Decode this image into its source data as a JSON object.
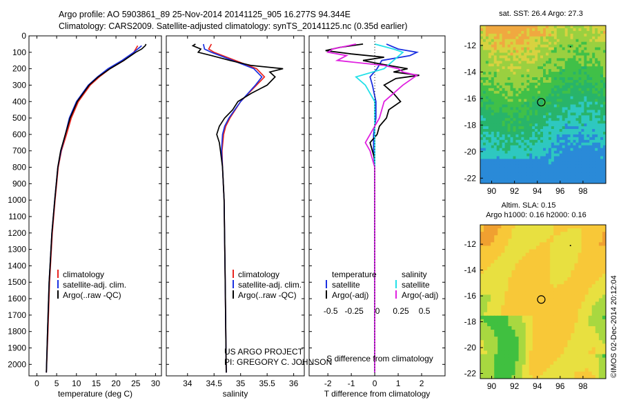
{
  "header": {
    "title_line1": "Argo profile: AO 5903861_89 25-Nov-2014 20141125_905 16.277S 94.344E",
    "title_line2": "Climatology: CARS2009. Satellite-adjusted climatology: synTS_20141125.nc (0.35d earlier)"
  },
  "side_label": "©IMOS 02-Dec-2014 20:12:04",
  "project_note": {
    "line1": "US ARGO PROJECT",
    "line2": "PI: GREGORY C. JOHNSON"
  },
  "colors": {
    "climatology": "#e8231e",
    "satellite": "#1a2fe0",
    "argo": "#000000",
    "salinity_sat": "#22e0e8",
    "salinity_argo": "#e020e0"
  },
  "chart_data": [
    {
      "type": "line",
      "title": "",
      "xlabel": "temperature (deg C)",
      "ylabel": "",
      "xlim": [
        -2,
        31.5
      ],
      "ylim": [
        2070,
        0
      ],
      "xticks": [
        0,
        5,
        10,
        15,
        20,
        25,
        30
      ],
      "yticks": [
        0,
        100,
        200,
        300,
        400,
        500,
        600,
        700,
        800,
        900,
        1000,
        1100,
        1200,
        1300,
        1400,
        1500,
        1600,
        1700,
        1800,
        1900,
        2000
      ],
      "legend": [
        "climatology",
        "satellite-adj. clim.",
        "Argo(..raw -QC)"
      ],
      "series": [
        {
          "name": "climatology",
          "depth": [
            60,
            100,
            150,
            200,
            250,
            300,
            400,
            500,
            600,
            700,
            800,
            1000,
            1200,
            1500,
            1800,
            2050
          ],
          "values": [
            25.5,
            24.5,
            22,
            18.5,
            15.8,
            13.5,
            10.5,
            8.7,
            7.5,
            6.2,
            5.4,
            4.6,
            3.9,
            3.2,
            2.8,
            2.4
          ]
        },
        {
          "name": "satellite-adj. clim.",
          "depth": [
            60,
            100,
            150,
            200,
            250,
            300,
            400,
            500,
            600,
            700,
            800,
            1000,
            1200,
            1500,
            1800,
            2050
          ],
          "values": [
            26.5,
            24.5,
            21.5,
            18,
            15.3,
            13,
            10,
            8.2,
            7.2,
            6.1,
            5.3,
            4.5,
            3.8,
            3.1,
            2.7,
            2.4
          ]
        },
        {
          "name": "Argo(..raw -QC)",
          "depth": [
            50,
            60,
            80,
            100,
            150,
            200,
            250,
            300,
            400,
            500,
            600,
            700,
            800,
            1000,
            1200,
            1500,
            1800,
            2050
          ],
          "values": [
            27.6,
            27.4,
            26.5,
            25,
            22,
            18.5,
            15.5,
            13.2,
            10.2,
            8.4,
            7.2,
            6,
            5.3,
            4.5,
            3.8,
            3.1,
            2.7,
            2.4
          ]
        }
      ]
    },
    {
      "type": "line",
      "title": "",
      "xlabel": "salinity",
      "ylabel": "",
      "xlim": [
        33.6,
        36.2
      ],
      "ylim": [
        2070,
        0
      ],
      "xticks": [
        34,
        34.5,
        35,
        35.5,
        36
      ],
      "legend": [
        "climatology",
        "satellite-adj. clim.",
        "Argo(..raw -QC)"
      ],
      "series": [
        {
          "name": "climatology",
          "depth": [
            50,
            80,
            100,
            150,
            200,
            250,
            300,
            400,
            500,
            550,
            600,
            700,
            800,
            1000,
            1500,
            2050
          ],
          "values": [
            34.45,
            34.4,
            34.5,
            34.9,
            35.3,
            35.45,
            35.3,
            35.0,
            34.8,
            34.72,
            34.68,
            34.65,
            34.66,
            34.69,
            34.71,
            34.73
          ]
        },
        {
          "name": "satellite-adj. clim.",
          "depth": [
            50,
            80,
            100,
            150,
            200,
            250,
            300,
            400,
            500,
            550,
            600,
            700,
            800,
            1000,
            1500,
            2050
          ],
          "values": [
            34.3,
            34.32,
            34.45,
            34.85,
            35.25,
            35.4,
            35.28,
            35.0,
            34.78,
            34.7,
            34.66,
            34.64,
            34.66,
            34.69,
            34.71,
            34.73
          ]
        },
        {
          "name": "Argo(..raw -QC)",
          "depth": [
            50,
            60,
            80,
            100,
            120,
            150,
            180,
            200,
            220,
            250,
            300,
            350,
            400,
            450,
            500,
            550,
            600,
            650,
            700,
            800,
            1000,
            1500,
            2050
          ],
          "values": [
            34.15,
            34.1,
            34.25,
            34.2,
            34.45,
            34.8,
            35.2,
            35.8,
            35.55,
            35.65,
            35.5,
            35.2,
            34.95,
            34.85,
            34.7,
            34.6,
            34.55,
            34.6,
            34.62,
            34.66,
            34.69,
            34.71,
            34.73
          ]
        }
      ]
    },
    {
      "type": "line",
      "title": "",
      "xlabel": "T difference from climatology",
      "top_xlabel": "S difference from climatology",
      "ylabel": "",
      "xlim": [
        -2.8,
        3.0
      ],
      "ylim": [
        2070,
        0
      ],
      "xticks": [
        -2,
        -1,
        0,
        1,
        2
      ],
      "top_xticks": [
        "-0.5",
        "-0.25",
        "0",
        "0.25",
        "0.5"
      ],
      "legend_titles": [
        "temperature",
        "salinity"
      ],
      "legend": [
        "satellite",
        "Argo(-adj)",
        "satellite",
        "Argo(-adj)"
      ],
      "series": [
        {
          "name": "temperature satellite",
          "depth": [
            50,
            80,
            100,
            120,
            150,
            200,
            250,
            300,
            400,
            500,
            600,
            700,
            800,
            1000,
            2050
          ],
          "values": [
            0.5,
            1.0,
            1.8,
            1.5,
            0.3,
            0.1,
            -0.2,
            -0.1,
            0.05,
            0.05,
            -0.05,
            -0.05,
            0,
            0,
            0
          ]
        },
        {
          "name": "temperature Argo(-adj)",
          "depth": [
            50,
            70,
            90,
            110,
            130,
            150,
            170,
            200,
            220,
            240,
            260,
            300,
            350,
            400,
            450,
            500,
            550,
            600,
            650,
            700,
            750,
            800,
            1000,
            2050
          ],
          "values": [
            -0.5,
            -1.5,
            -2.1,
            -1.0,
            0.4,
            -0.5,
            0.2,
            1.4,
            0.8,
            1.9,
            0.9,
            0.4,
            0.8,
            1.1,
            0.6,
            0.5,
            0.2,
            0.1,
            -0.2,
            -0.1,
            0,
            0,
            0,
            0
          ]
        },
        {
          "name": "salinity satellite",
          "depth": [
            50,
            80,
            100,
            150,
            200,
            250,
            300,
            400,
            500,
            600,
            700,
            800,
            1000,
            2050
          ],
          "values": [
            0.0,
            0.2,
            0.3,
            0.2,
            0.1,
            -0.2,
            -0.1,
            0.0,
            0.0,
            0.0,
            0.0,
            0.0,
            0.0,
            0.0
          ]
        },
        {
          "name": "salinity Argo(-adj)",
          "depth": [
            50,
            80,
            100,
            120,
            150,
            180,
            200,
            220,
            240,
            300,
            400,
            500,
            600,
            650,
            700,
            800,
            1000,
            2050
          ],
          "values": [
            -0.2,
            -0.45,
            -0.5,
            -0.3,
            -0.4,
            0.1,
            0.25,
            0.3,
            0.45,
            0.3,
            0.1,
            0.05,
            -0.05,
            -0.1,
            -0.05,
            0.0,
            0.0,
            0.0
          ]
        }
      ]
    },
    {
      "type": "heatmap",
      "title": "sat. SST: 26.4  Argo: 27.3",
      "xlabel": "",
      "ylabel": "",
      "xlim": [
        89,
        100
      ],
      "ylim": [
        -22.4,
        -10.5
      ],
      "xticks": [
        90,
        92,
        94,
        96,
        98
      ],
      "yticks": [
        -12,
        -14,
        -16,
        -18,
        -20,
        -22
      ],
      "argo_position": {
        "lon": 94.344,
        "lat": -16.277
      }
    },
    {
      "type": "heatmap",
      "title": "Altim. SLA: 0.15",
      "subtitle": "Argo h1000: 0.16 h2000: 0.16",
      "xlabel": "",
      "ylabel": "",
      "xlim": [
        89,
        100
      ],
      "ylim": [
        -22.4,
        -10.5
      ],
      "xticks": [
        90,
        92,
        94,
        96,
        98
      ],
      "yticks": [
        -12,
        -14,
        -16,
        -18,
        -20,
        -22
      ],
      "argo_position": {
        "lon": 94.344,
        "lat": -16.277
      }
    }
  ]
}
